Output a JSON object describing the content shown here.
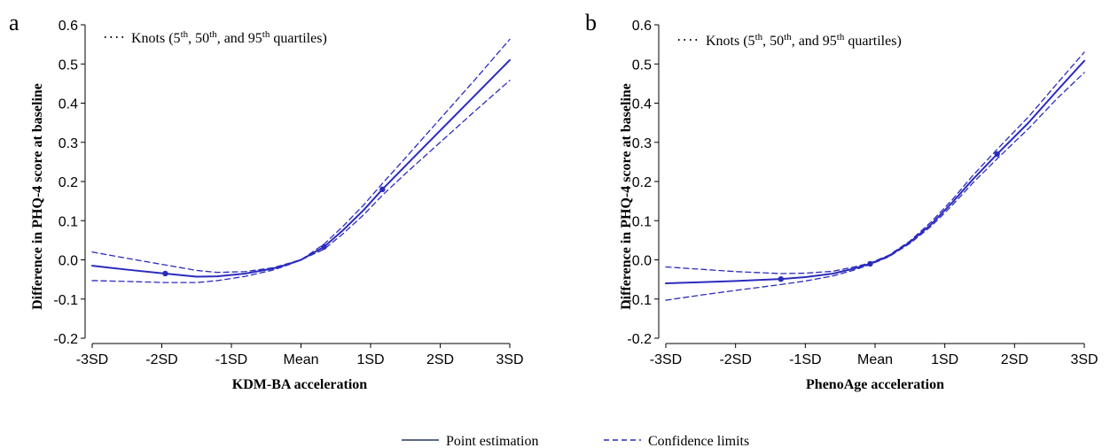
{
  "colors": {
    "curve": "#2b2bbf",
    "axis": "#000000",
    "legend_solid": "#5a6b86"
  },
  "legend": {
    "point_label": "Point estimation",
    "ci_label": "Confidence limits"
  },
  "chart_data": [
    {
      "type": "line",
      "panel_label": "a",
      "xlabel": "KDM-BA acceleration",
      "ylabel": "Difference in PHQ-4 score at baseline",
      "knots_label": {
        "prefix": "Knots (5",
        "sup1": "th",
        "mid1": ", 50",
        "sup2": "th",
        "mid2": ", and 95",
        "sup3": "th",
        "suffix": " quartiles)"
      },
      "x_ticks": [
        -3,
        -2,
        -1,
        0,
        1,
        2,
        3
      ],
      "x_tick_labels": [
        "-3SD",
        "-2SD",
        "-1SD",
        "Mean",
        "1SD",
        "2SD",
        "3SD"
      ],
      "xlim": [
        -3,
        3
      ],
      "y_ticks": [
        -0.2,
        -0.1,
        0.0,
        0.1,
        0.2,
        0.3,
        0.4,
        0.5,
        0.6
      ],
      "y_tick_labels": [
        "-0.2",
        "-0.1",
        "0.0",
        "0.1",
        "0.2",
        "0.3",
        "0.4",
        "0.5",
        "0.6"
      ],
      "ylim": [
        -0.2,
        0.6
      ],
      "knots_x": [
        -1.95,
        0.33,
        1.17
      ],
      "series": [
        {
          "role": "point",
          "x": [
            -3,
            -2.5,
            -1.95,
            -1.5,
            -1.2,
            -0.8,
            -0.4,
            -0.2,
            0,
            0.33,
            0.6,
            0.9,
            1.17,
            1.5,
            2,
            2.5,
            3
          ],
          "y": [
            -0.015,
            -0.025,
            -0.035,
            -0.043,
            -0.042,
            -0.035,
            -0.022,
            -0.012,
            0.0,
            0.033,
            0.075,
            0.127,
            0.18,
            0.24,
            0.33,
            0.42,
            0.51
          ]
        },
        {
          "role": "upper",
          "x": [
            -3,
            -2.5,
            -1.95,
            -1.5,
            -1.2,
            -0.8,
            -0.4,
            -0.2,
            0,
            0.33,
            0.6,
            0.9,
            1.17,
            1.5,
            2,
            2.5,
            3
          ],
          "y": [
            0.02,
            0.004,
            -0.013,
            -0.027,
            -0.032,
            -0.03,
            -0.02,
            -0.01,
            0.0,
            0.04,
            0.085,
            0.14,
            0.195,
            0.26,
            0.36,
            0.46,
            0.563
          ]
        },
        {
          "role": "lower",
          "x": [
            -3,
            -2.5,
            -1.95,
            -1.5,
            -1.2,
            -0.8,
            -0.4,
            -0.2,
            0,
            0.33,
            0.6,
            0.9,
            1.17,
            1.5,
            2,
            2.5,
            3
          ],
          "y": [
            -0.053,
            -0.055,
            -0.058,
            -0.058,
            -0.053,
            -0.042,
            -0.026,
            -0.014,
            0.0,
            0.027,
            0.066,
            0.115,
            0.165,
            0.22,
            0.3,
            0.38,
            0.458
          ]
        }
      ]
    },
    {
      "type": "line",
      "panel_label": "b",
      "xlabel": "PhenoAge acceleration",
      "ylabel": "Difference in PHQ-4 score at baseline",
      "knots_label": {
        "prefix": "Knots (5",
        "sup1": "th",
        "mid1": ", 50",
        "sup2": "th",
        "mid2": ", and 95",
        "sup3": "th",
        "suffix": " quartiles)"
      },
      "x_ticks": [
        -3,
        -2,
        -1,
        0,
        1,
        2,
        3
      ],
      "x_tick_labels": [
        "-3SD",
        "-2SD",
        "-1SD",
        "Mean",
        "1SD",
        "2SD",
        "3SD"
      ],
      "xlim": [
        -3,
        3
      ],
      "y_ticks": [
        -0.2,
        -0.1,
        0.0,
        0.1,
        0.2,
        0.3,
        0.4,
        0.5,
        0.6
      ],
      "y_tick_labels": [
        "-0.2",
        "-0.1",
        "0.0",
        "0.1",
        "0.2",
        "0.3",
        "0.4",
        "0.5",
        "0.6"
      ],
      "ylim": [
        -0.2,
        0.6
      ],
      "knots_x": [
        -1.35,
        -0.07,
        1.75
      ],
      "series": [
        {
          "role": "point",
          "x": [
            -3,
            -2.5,
            -2,
            -1.35,
            -1,
            -0.6,
            -0.3,
            -0.07,
            0.2,
            0.5,
            0.8,
            1.1,
            1.4,
            1.75,
            2.2,
            2.6,
            3
          ],
          "y": [
            -0.06,
            -0.057,
            -0.054,
            -0.049,
            -0.044,
            -0.035,
            -0.022,
            -0.01,
            0.01,
            0.045,
            0.09,
            0.145,
            0.205,
            0.27,
            0.35,
            0.43,
            0.508
          ]
        },
        {
          "role": "upper",
          "x": [
            -3,
            -2.5,
            -2,
            -1.35,
            -1,
            -0.6,
            -0.3,
            -0.07,
            0.2,
            0.5,
            0.8,
            1.1,
            1.4,
            1.75,
            2.2,
            2.6,
            3
          ],
          "y": [
            -0.018,
            -0.024,
            -0.03,
            -0.035,
            -0.034,
            -0.029,
            -0.018,
            -0.008,
            0.012,
            0.048,
            0.096,
            0.152,
            0.215,
            0.282,
            0.365,
            0.448,
            0.53
          ]
        },
        {
          "role": "lower",
          "x": [
            -3,
            -2.5,
            -2,
            -1.35,
            -1,
            -0.6,
            -0.3,
            -0.07,
            0.2,
            0.5,
            0.8,
            1.1,
            1.4,
            1.75,
            2.2,
            2.6,
            3
          ],
          "y": [
            -0.103,
            -0.09,
            -0.078,
            -0.063,
            -0.054,
            -0.041,
            -0.026,
            -0.012,
            0.008,
            0.042,
            0.085,
            0.138,
            0.196,
            0.258,
            0.335,
            0.41,
            0.478
          ]
        }
      ]
    }
  ]
}
